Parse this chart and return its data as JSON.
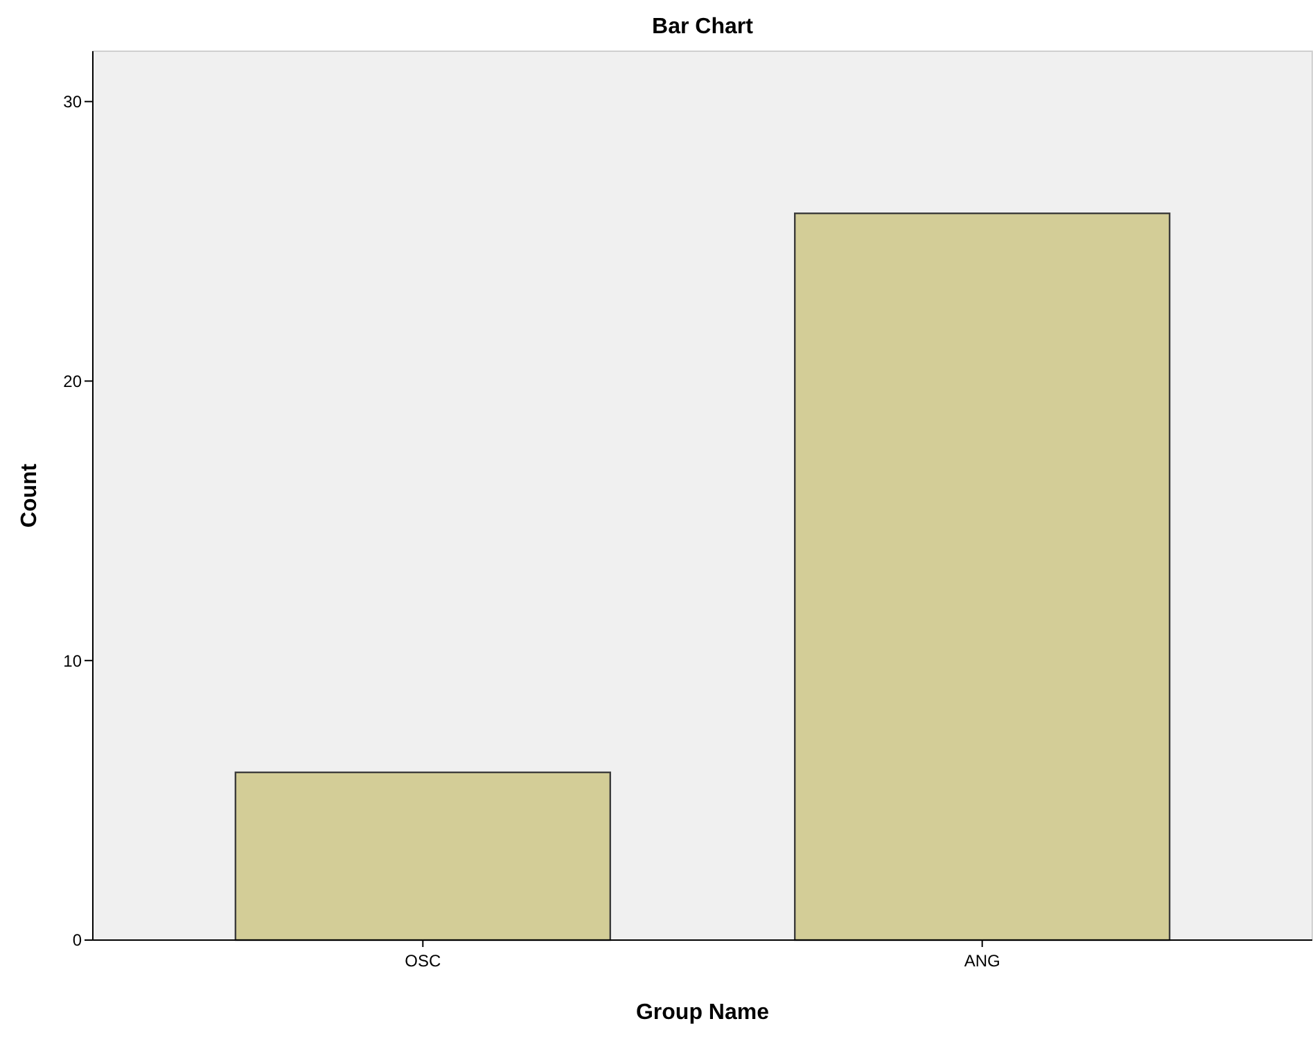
{
  "chart_data": {
    "type": "bar",
    "title": "Bar Chart",
    "xlabel": "Group Name",
    "ylabel": "Count",
    "categories": [
      "OSC",
      "ANG"
    ],
    "values": [
      6,
      26
    ],
    "color": "#d3cd97",
    "ylim": [
      0,
      31.8
    ],
    "yticks": [
      0,
      10,
      20,
      30
    ],
    "grid": false
  }
}
